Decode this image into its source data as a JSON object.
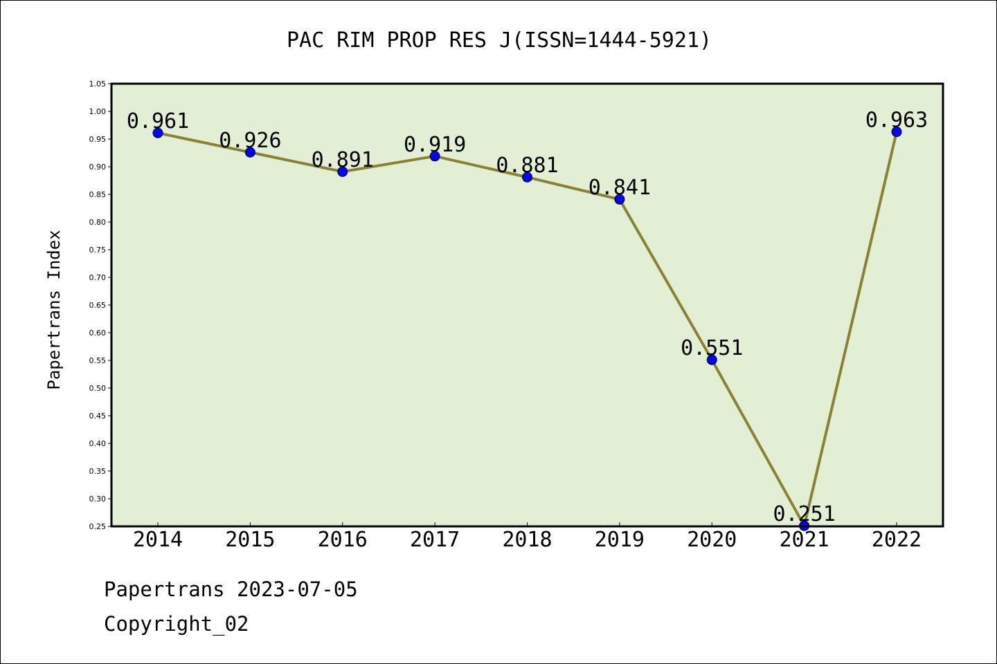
{
  "chart_data": {
    "type": "line",
    "title": "PAC RIM PROP RES J(ISSN=1444-5921)",
    "xlabel": "",
    "ylabel": "Papertrans Index",
    "categories": [
      "2014",
      "2015",
      "2016",
      "2017",
      "2018",
      "2019",
      "2020",
      "2021",
      "2022"
    ],
    "series": [
      {
        "values": [
          0.961,
          0.926,
          0.891,
          0.919,
          0.881,
          0.841,
          0.551,
          0.251,
          0.963
        ]
      }
    ],
    "data_labels": [
      "0.961",
      "0.926",
      "0.891",
      "0.919",
      "0.881",
      "0.841",
      "0.551",
      "0.251",
      "0.963"
    ],
    "ylim": [
      0.25,
      1.05
    ],
    "yticks": [
      "0.25",
      "0.30",
      "0.35",
      "0.40",
      "0.45",
      "0.50",
      "0.55",
      "0.60",
      "0.65",
      "0.70",
      "0.75",
      "0.80",
      "0.85",
      "0.90",
      "0.95",
      "1.00",
      "1.05"
    ],
    "grid": false,
    "legend": "none"
  },
  "colors": {
    "plot_background": "#e2efd5",
    "line": "#8b8134",
    "marker": "#0000ff",
    "frame": "#000000"
  },
  "footer": {
    "line1": "Papertrans 2023-07-05",
    "line2": "Copyright_02"
  }
}
